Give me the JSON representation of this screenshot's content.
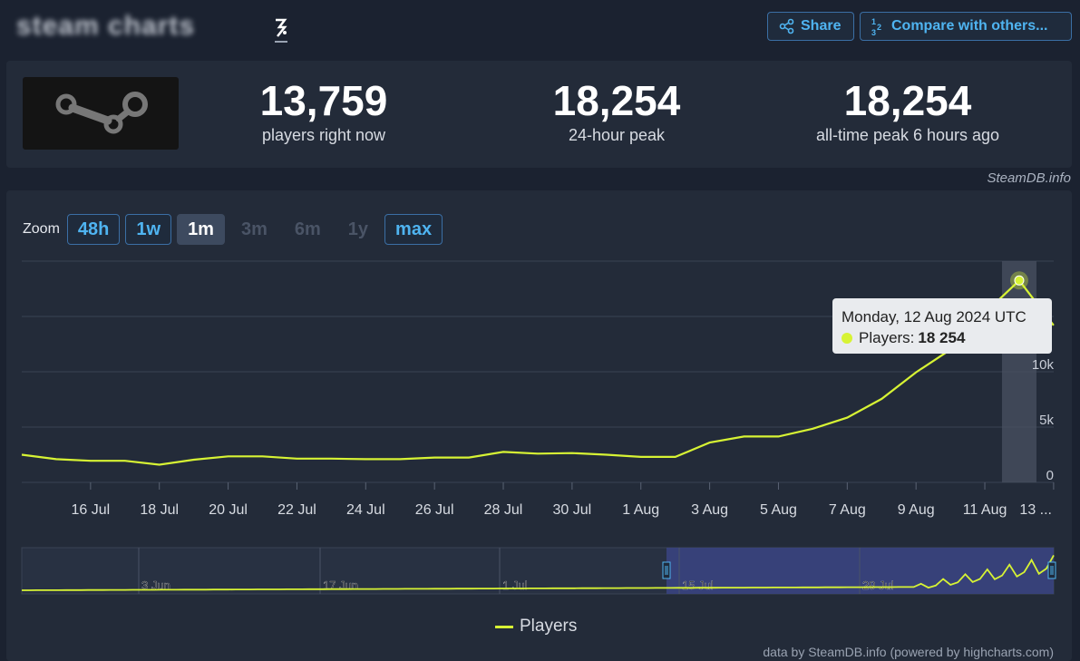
{
  "header": {
    "site_name": "steam charts",
    "share_label": "Share",
    "compare_label": "Compare with others...",
    "compare_icon": "1/2/3",
    "brand_mark": "steam-logo"
  },
  "stats": {
    "current": {
      "value": "13,759",
      "label": "players right now"
    },
    "peak24": {
      "value": "18,254",
      "label": "24-hour peak"
    },
    "alltime": {
      "value": "18,254",
      "label": "all-time peak 6 hours ago"
    }
  },
  "credit": "SteamDB.info",
  "zoom": {
    "label": "Zoom",
    "buttons": [
      {
        "label": "48h",
        "state": "enabled"
      },
      {
        "label": "1w",
        "state": "enabled"
      },
      {
        "label": "1m",
        "state": "selected"
      },
      {
        "label": "3m",
        "state": "disabled"
      },
      {
        "label": "6m",
        "state": "disabled"
      },
      {
        "label": "1y",
        "state": "disabled"
      },
      {
        "label": "max",
        "state": "enabled"
      }
    ]
  },
  "tooltip": {
    "date": "Monday, 12 Aug 2024 UTC",
    "series_label": "Players:",
    "value": "18 254"
  },
  "legend": {
    "label": "Players"
  },
  "footer": "data by SteamDB.info (powered by highcharts.com)",
  "colors": {
    "line": "#d7f334",
    "accent": "#4fb4f1",
    "background": "#1b2230",
    "panel": "#232b39",
    "navigator_selection": "#3a4482"
  },
  "chart_data": [
    {
      "type": "line",
      "x_tick_labels": [
        "16 Jul",
        "18 Jul",
        "20 Jul",
        "22 Jul",
        "24 Jul",
        "26 Jul",
        "28 Jul",
        "30 Jul",
        "1 Aug",
        "3 Aug",
        "5 Aug",
        "7 Aug",
        "9 Aug",
        "11 Aug",
        "13 ..."
      ],
      "y_tick_labels": [
        "0",
        "5k",
        "10k"
      ],
      "ylim": [
        0,
        20000
      ],
      "grid": true,
      "legend_position": "bottom-center",
      "series": [
        {
          "name": "Players",
          "x": [
            "14 Jul",
            "15 Jul",
            "16 Jul",
            "17 Jul",
            "18 Jul",
            "19 Jul",
            "20 Jul",
            "21 Jul",
            "22 Jul",
            "23 Jul",
            "24 Jul",
            "25 Jul",
            "26 Jul",
            "27 Jul",
            "28 Jul",
            "29 Jul",
            "30 Jul",
            "31 Jul",
            "1 Aug",
            "2 Aug",
            "3 Aug",
            "4 Aug",
            "5 Aug",
            "6 Aug",
            "7 Aug",
            "8 Aug",
            "9 Aug",
            "10 Aug",
            "11 Aug",
            "12 Aug",
            "13 Aug"
          ],
          "values": [
            2500,
            2100,
            1950,
            1950,
            1600,
            2050,
            2350,
            2350,
            2150,
            2150,
            2100,
            2100,
            2250,
            2250,
            2750,
            2600,
            2650,
            2500,
            2300,
            2300,
            3600,
            4150,
            4150,
            4850,
            5850,
            7550,
            9950,
            12000,
            15300,
            18254,
            14200
          ]
        }
      ]
    },
    {
      "type": "area",
      "role": "navigator",
      "x_tick_labels": [
        "3 Jun",
        "17 Jun",
        "1 Jul",
        "15 Jul",
        "29 Jul"
      ],
      "selected_range": [
        "14 Jul",
        "13 Aug"
      ]
    }
  ]
}
